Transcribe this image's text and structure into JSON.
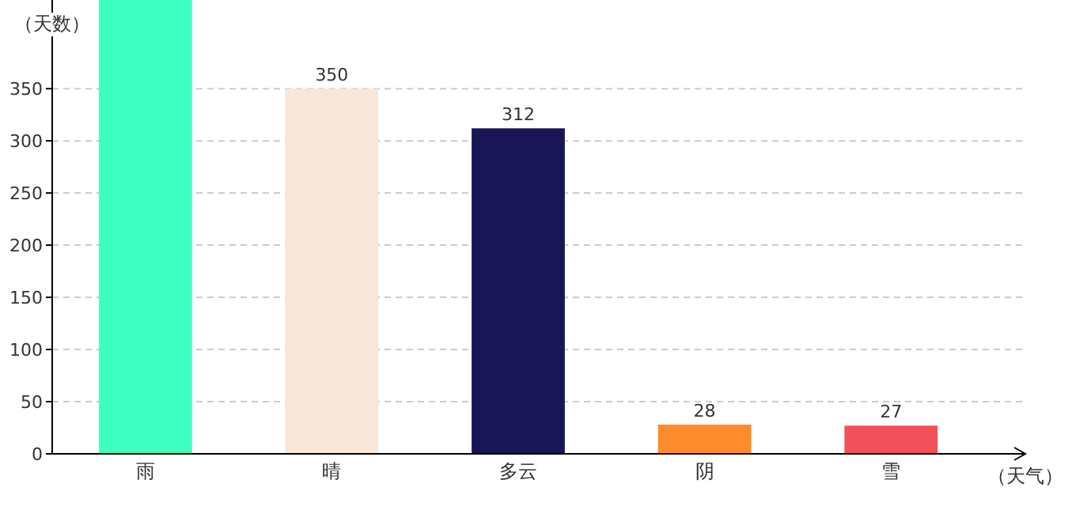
{
  "chart_data": {
    "type": "bar",
    "xlabel": "（天气）",
    "ylabel": "（天数）",
    "categories": [
      "雨",
      "晴",
      "多云",
      "阴",
      "雪"
    ],
    "values": [
      435,
      350,
      312,
      28,
      27
    ],
    "colors": [
      "#3cffc0",
      "#f8e6d8",
      "#1a1656",
      "#ff8c2a",
      "#f2505a"
    ],
    "value_labels": [
      null,
      "350",
      "312",
      "28",
      "27"
    ],
    "ylim": [
      0,
      435
    ],
    "yticks": [
      0,
      50,
      100,
      150,
      200,
      250,
      300,
      350
    ],
    "grid": "y"
  }
}
